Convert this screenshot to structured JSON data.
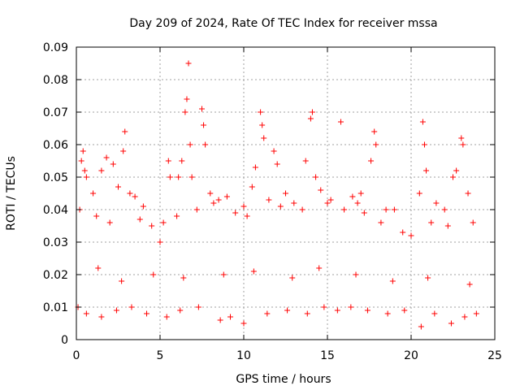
{
  "chart_data": {
    "type": "scatter",
    "title": "Day 209 of 2024, Rate Of TEC Index for receiver mssa",
    "xlabel": "GPS time / hours",
    "ylabel": "ROTI / TECUs",
    "xlim": [
      0,
      25
    ],
    "ylim": [
      0,
      0.09
    ],
    "xticks": [
      0,
      5,
      10,
      15,
      20,
      25
    ],
    "xtick_labels": [
      "0",
      "5",
      "10",
      "15",
      "20",
      "25"
    ],
    "yticks": [
      0,
      0.01,
      0.02,
      0.03,
      0.04,
      0.05,
      0.06,
      0.07,
      0.08,
      0.09
    ],
    "ytick_labels": [
      "0",
      "0.01",
      "0.02",
      "0.03",
      "0.04",
      "0.05",
      "0.06",
      "0.07",
      "0.08",
      "0.09"
    ],
    "grid": true,
    "marker": "+",
    "color": "#ff0000",
    "series": [
      {
        "name": "ROTI",
        "points": [
          [
            0.3,
            0.055
          ],
          [
            0.4,
            0.058
          ],
          [
            0.5,
            0.052
          ],
          [
            0.6,
            0.05
          ],
          [
            1.0,
            0.045
          ],
          [
            1.5,
            0.052
          ],
          [
            1.8,
            0.056
          ],
          [
            2.2,
            0.054
          ],
          [
            2.5,
            0.047
          ],
          [
            2.8,
            0.058
          ],
          [
            2.9,
            0.064
          ],
          [
            3.2,
            0.045
          ],
          [
            3.5,
            0.044
          ],
          [
            4.0,
            0.041
          ],
          [
            5.0,
            0.03
          ],
          [
            5.5,
            0.055
          ],
          [
            5.6,
            0.05
          ],
          [
            6.1,
            0.05
          ],
          [
            6.3,
            0.055
          ],
          [
            6.5,
            0.07
          ],
          [
            6.6,
            0.074
          ],
          [
            6.7,
            0.085
          ],
          [
            6.8,
            0.06
          ],
          [
            6.9,
            0.05
          ],
          [
            7.5,
            0.071
          ],
          [
            7.6,
            0.066
          ],
          [
            7.7,
            0.06
          ],
          [
            8.0,
            0.045
          ],
          [
            8.5,
            0.043
          ],
          [
            9.0,
            0.044
          ],
          [
            10.0,
            0.041
          ],
          [
            10.5,
            0.047
          ],
          [
            10.7,
            0.053
          ],
          [
            11.0,
            0.07
          ],
          [
            11.1,
            0.066
          ],
          [
            11.2,
            0.062
          ],
          [
            11.8,
            0.058
          ],
          [
            12.0,
            0.054
          ],
          [
            12.5,
            0.045
          ],
          [
            13.0,
            0.042
          ],
          [
            13.7,
            0.055
          ],
          [
            14.0,
            0.068
          ],
          [
            14.1,
            0.07
          ],
          [
            14.3,
            0.05
          ],
          [
            15.0,
            0.042
          ],
          [
            15.8,
            0.067
          ],
          [
            16.5,
            0.044
          ],
          [
            17.0,
            0.045
          ],
          [
            17.6,
            0.055
          ],
          [
            17.8,
            0.064
          ],
          [
            17.9,
            0.06
          ],
          [
            18.5,
            0.04
          ],
          [
            19.0,
            0.04
          ],
          [
            20.5,
            0.045
          ],
          [
            20.7,
            0.067
          ],
          [
            20.8,
            0.06
          ],
          [
            20.9,
            0.052
          ],
          [
            21.5,
            0.042
          ],
          [
            22.0,
            0.04
          ],
          [
            22.5,
            0.05
          ],
          [
            22.7,
            0.052
          ],
          [
            23.0,
            0.062
          ],
          [
            23.1,
            0.06
          ],
          [
            23.4,
            0.045
          ],
          [
            0.2,
            0.04
          ],
          [
            1.2,
            0.038
          ],
          [
            2.0,
            0.036
          ],
          [
            3.8,
            0.037
          ],
          [
            4.5,
            0.035
          ],
          [
            5.2,
            0.036
          ],
          [
            6.0,
            0.038
          ],
          [
            7.2,
            0.04
          ],
          [
            8.2,
            0.042
          ],
          [
            9.5,
            0.039
          ],
          [
            10.2,
            0.038
          ],
          [
            11.5,
            0.043
          ],
          [
            12.2,
            0.041
          ],
          [
            13.5,
            0.04
          ],
          [
            14.6,
            0.046
          ],
          [
            15.2,
            0.043
          ],
          [
            16.0,
            0.04
          ],
          [
            16.8,
            0.042
          ],
          [
            17.2,
            0.039
          ],
          [
            18.2,
            0.036
          ],
          [
            19.5,
            0.033
          ],
          [
            20.0,
            0.032
          ],
          [
            21.2,
            0.036
          ],
          [
            22.2,
            0.035
          ],
          [
            23.7,
            0.036
          ],
          [
            0.1,
            0.01
          ],
          [
            0.6,
            0.008
          ],
          [
            1.5,
            0.007
          ],
          [
            2.4,
            0.009
          ],
          [
            3.3,
            0.01
          ],
          [
            4.2,
            0.008
          ],
          [
            5.4,
            0.007
          ],
          [
            6.2,
            0.009
          ],
          [
            7.3,
            0.01
          ],
          [
            8.6,
            0.006
          ],
          [
            9.2,
            0.007
          ],
          [
            10.0,
            0.005
          ],
          [
            11.4,
            0.008
          ],
          [
            12.6,
            0.009
          ],
          [
            13.8,
            0.008
          ],
          [
            14.8,
            0.01
          ],
          [
            15.6,
            0.009
          ],
          [
            16.4,
            0.01
          ],
          [
            17.4,
            0.009
          ],
          [
            18.6,
            0.008
          ],
          [
            19.6,
            0.009
          ],
          [
            20.6,
            0.004
          ],
          [
            21.4,
            0.008
          ],
          [
            22.4,
            0.005
          ],
          [
            23.2,
            0.007
          ],
          [
            23.9,
            0.008
          ],
          [
            1.3,
            0.022
          ],
          [
            2.7,
            0.018
          ],
          [
            4.6,
            0.02
          ],
          [
            6.4,
            0.019
          ],
          [
            8.8,
            0.02
          ],
          [
            10.6,
            0.021
          ],
          [
            12.9,
            0.019
          ],
          [
            14.5,
            0.022
          ],
          [
            16.7,
            0.02
          ],
          [
            18.9,
            0.018
          ],
          [
            21.0,
            0.019
          ],
          [
            23.5,
            0.017
          ]
        ]
      }
    ]
  }
}
